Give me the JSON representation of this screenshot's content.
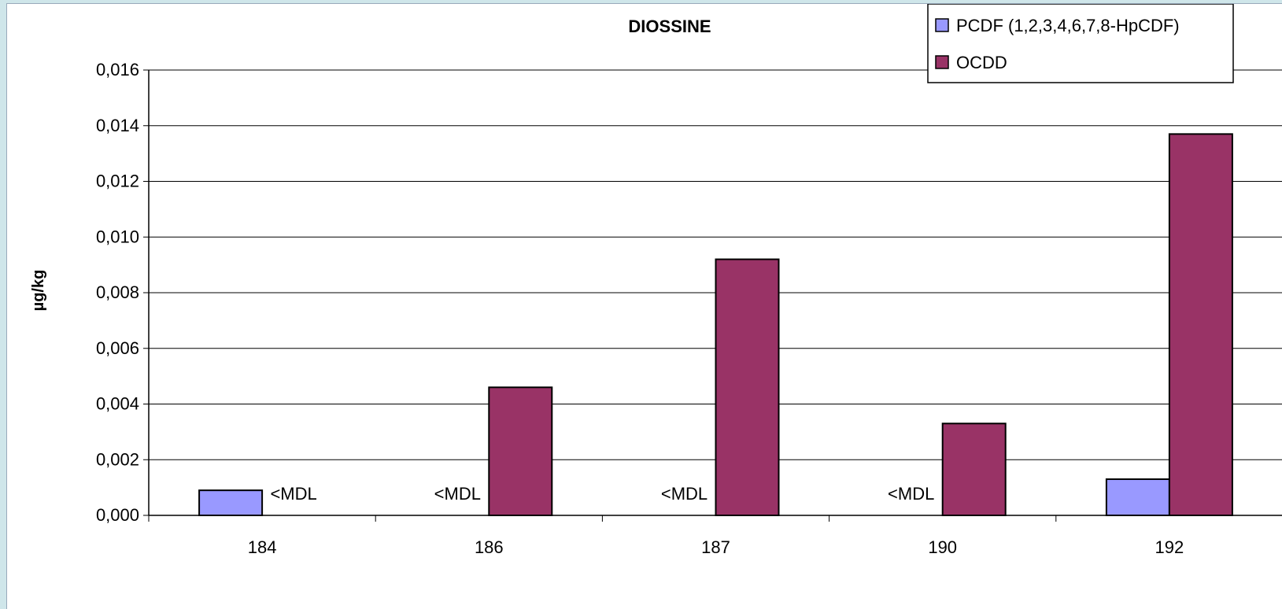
{
  "chart_data": {
    "type": "bar",
    "title": "DIOSSINE",
    "ylabel": "µg/kg",
    "xlabel": "",
    "categories": [
      "184",
      "186",
      "187",
      "190",
      "192"
    ],
    "ylim": [
      0,
      0.016
    ],
    "yticks": [
      0,
      0.002,
      0.004,
      0.006,
      0.008,
      0.01,
      0.012,
      0.014,
      0.016
    ],
    "ytick_labels": [
      "0,000",
      "0,002",
      "0,004",
      "0,006",
      "0,008",
      "0,010",
      "0,012",
      "0,014",
      "0,016"
    ],
    "grid": true,
    "legend_position": "top-right",
    "series": [
      {
        "name": "PCDF (1,2,3,4,6,7,8-HpCDF)",
        "color": "#9999ff",
        "values": [
          0.0009,
          null,
          null,
          null,
          0.0013
        ]
      },
      {
        "name": "OCDD",
        "color": "#993366",
        "values": [
          null,
          0.0046,
          0.0092,
          0.0033,
          0.0137
        ]
      }
    ],
    "annotations": [
      {
        "category": "184",
        "series": "OCDD",
        "text": "<MDL"
      },
      {
        "category": "186",
        "series": "PCDF (1,2,3,4,6,7,8-HpCDF)",
        "text": "<MDL"
      },
      {
        "category": "187",
        "series": "PCDF (1,2,3,4,6,7,8-HpCDF)",
        "text": "<MDL"
      },
      {
        "category": "190",
        "series": "PCDF (1,2,3,4,6,7,8-HpCDF)",
        "text": "<MDL"
      }
    ]
  }
}
